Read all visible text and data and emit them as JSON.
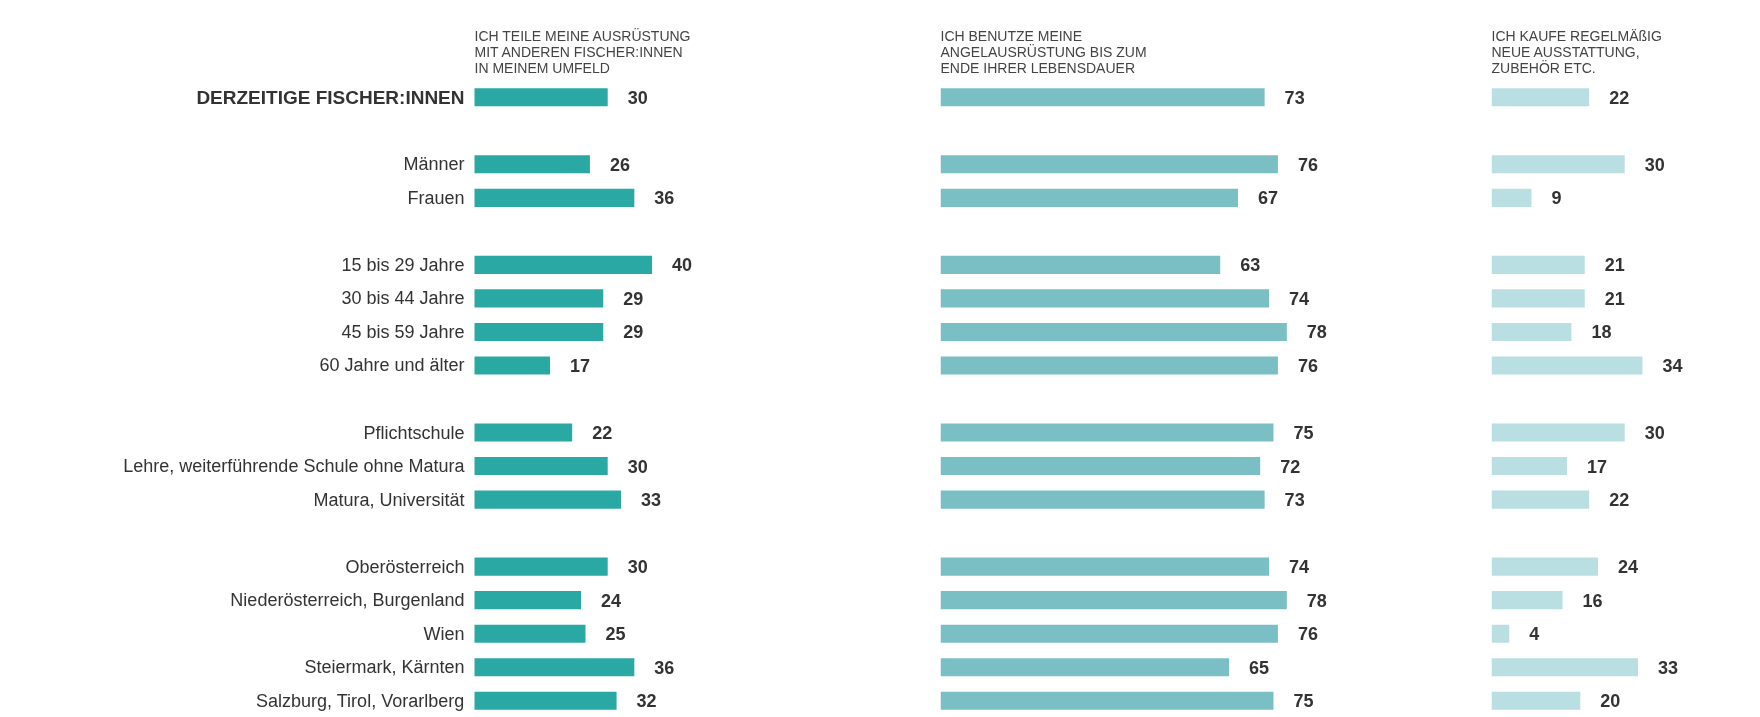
{
  "chart_data": [
    {
      "type": "bar",
      "orientation": "horizontal",
      "title": "ICH TEILE MEINE AUSRÜSTUNG\nMIT ANDEREN FISCHER:INNEN\nIN MEINEM UMFELD",
      "categories": [
        "DERZEITIGE FISCHER:INNEN",
        null,
        "Männer",
        "Frauen",
        null,
        "15 bis 29 Jahre",
        "30 bis 44 Jahre",
        "45 bis 59 Jahre",
        "60 Jahre und älter",
        null,
        "Pflichtschule",
        "Lehre, weiterführende Schule ohne Matura",
        "Matura, Universität",
        null,
        "Oberösterreich",
        "Niederösterreich, Burgenland",
        "Wien",
        "Steiermark, Kärnten",
        "Salzburg, Tirol, Vorarlberg"
      ],
      "values": [
        30,
        null,
        26,
        36,
        null,
        40,
        29,
        29,
        17,
        null,
        22,
        30,
        33,
        null,
        30,
        24,
        25,
        36,
        32
      ],
      "color": "#2aa9a4",
      "data_labels": true,
      "tick_labels": "y"
    },
    {
      "type": "bar",
      "orientation": "horizontal",
      "title": "ICH BENUTZE MEINE\nANGELAUSRÜSTUNG BIS ZUM\nENDE IHRER LEBENSDAUER",
      "values": [
        73,
        null,
        76,
        67,
        null,
        63,
        74,
        78,
        76,
        null,
        75,
        72,
        73,
        null,
        74,
        78,
        76,
        65,
        75
      ],
      "color": "#7abfc4",
      "data_labels": true
    },
    {
      "type": "bar",
      "orientation": "horizontal",
      "title": "ICH KAUFE REGELMÄßIG\nNEUE AUSSTATTUNG,\nZUBEHÖR ETC.",
      "values": [
        22,
        null,
        30,
        9,
        null,
        21,
        21,
        18,
        34,
        null,
        30,
        17,
        22,
        null,
        24,
        16,
        4,
        33,
        20
      ],
      "color": "#b9dfe2",
      "data_labels": true
    }
  ]
}
